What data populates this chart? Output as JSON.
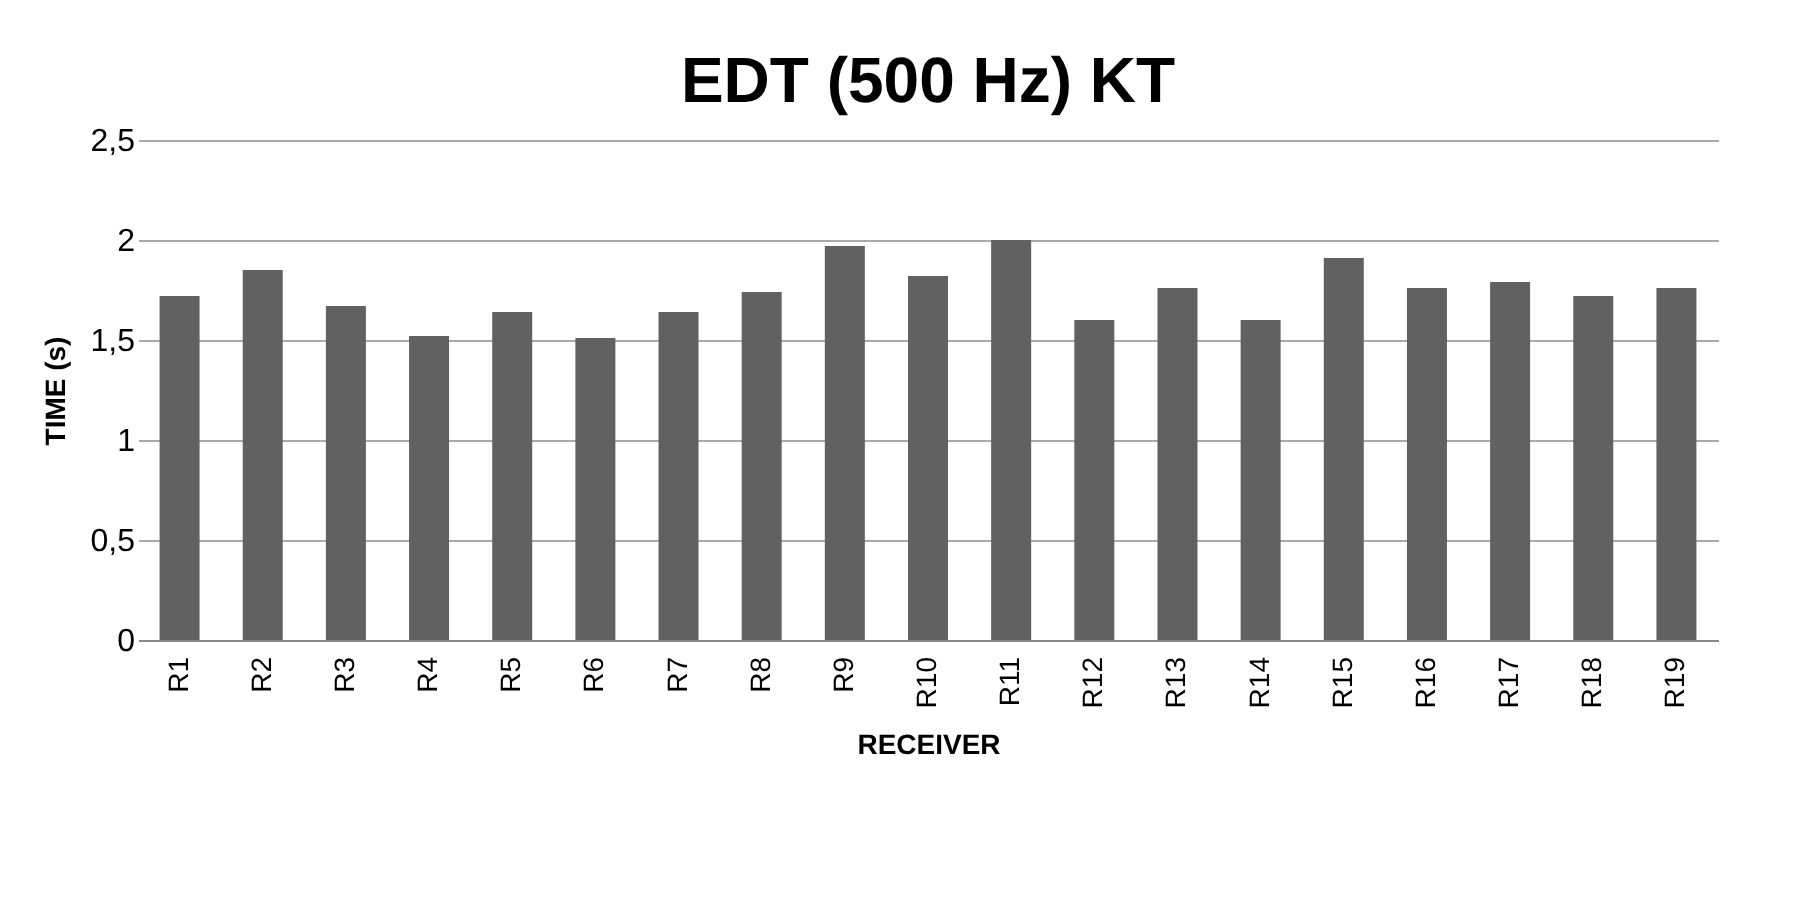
{
  "chart_data": {
    "type": "bar",
    "title": "EDT (500 Hz) KT",
    "xlabel": "RECEIVER",
    "ylabel": "TIME (s)",
    "categories": [
      "R1",
      "R2",
      "R3",
      "R4",
      "R5",
      "R6",
      "R7",
      "R8",
      "R9",
      "R10",
      "R11",
      "R12",
      "R13",
      "R14",
      "R15",
      "R16",
      "R17",
      "R18",
      "R19"
    ],
    "values": [
      1.72,
      1.85,
      1.67,
      1.52,
      1.64,
      1.51,
      1.64,
      1.74,
      1.97,
      1.82,
      2.0,
      1.6,
      1.76,
      1.6,
      1.91,
      1.76,
      1.79,
      1.72,
      1.76
    ],
    "color": "#616161",
    "ylim": [
      0,
      2.5
    ],
    "yticks": [
      0,
      {
        "value": 0.5,
        "label": "0,5"
      },
      1,
      {
        "value": 1.5,
        "label": "1,5"
      },
      2,
      {
        "value": 2.5,
        "label": "2,5"
      }
    ],
    "grid": "y"
  }
}
